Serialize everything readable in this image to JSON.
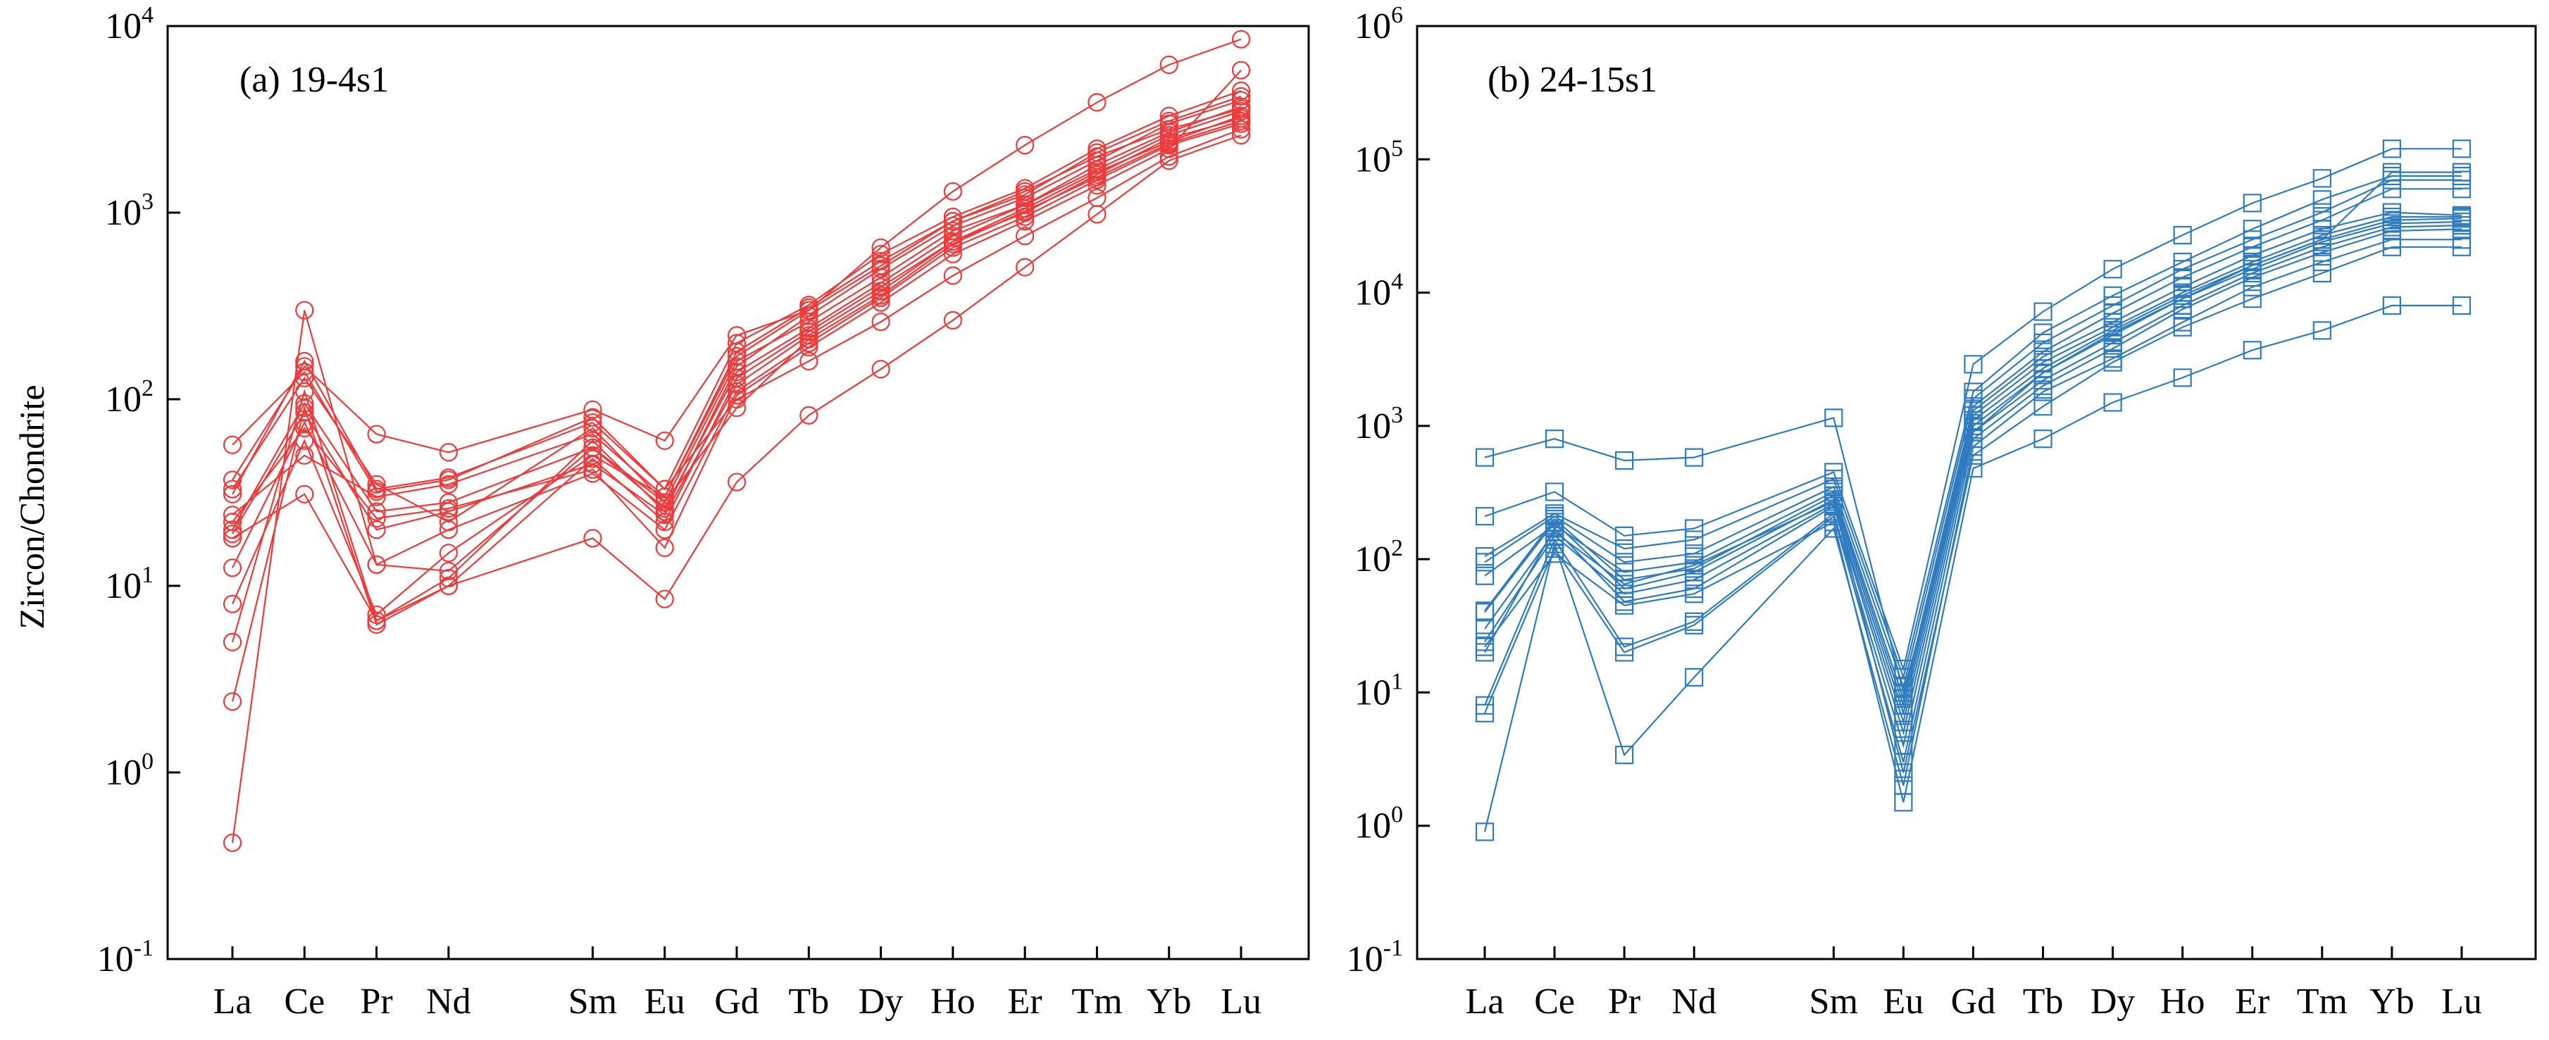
{
  "figure": {
    "y_axis_title": "Zircon/Chondrite"
  },
  "chart_data": [
    {
      "type": "line",
      "panel_label": "(a) 19-4s1",
      "categories": [
        "La",
        "Ce",
        "Pr",
        "Nd",
        "Sm",
        "Eu",
        "Gd",
        "Tb",
        "Dy",
        "Ho",
        "Er",
        "Tm",
        "Yb",
        "Lu"
      ],
      "category_gap_before": "Sm",
      "y_scale": "log",
      "ylim": [
        0.1,
        10000
      ],
      "y_ticks": [
        {
          "base": "10",
          "exp": "-1"
        },
        {
          "base": "10",
          "exp": "0"
        },
        {
          "base": "10",
          "exp": "1"
        },
        {
          "base": "10",
          "exp": "2"
        },
        {
          "base": "10",
          "exp": "3"
        },
        {
          "base": "10",
          "exp": "4"
        }
      ],
      "marker": "circle",
      "color": "#ee3a3a",
      "grid": false,
      "series": [
        {
          "values": [
            0.42,
            300,
            13,
            12,
            55,
            28,
            160,
            260,
            450,
            800,
            1100,
            1700,
            2600,
            3500
          ]
        },
        {
          "values": [
            2.4,
            90,
            6.2,
            10,
            48,
            22,
            130,
            230,
            400,
            700,
            1000,
            1600,
            2500,
            3200
          ]
        },
        {
          "values": [
            5,
            110,
            6.5,
            11,
            60,
            25,
            150,
            280,
            500,
            850,
            1200,
            1900,
            3000,
            4000
          ]
        },
        {
          "values": [
            8,
            60,
            7,
            15,
            50,
            30,
            170,
            300,
            520,
            900,
            1300,
            2000,
            2800,
            3600
          ]
        },
        {
          "values": [
            12.5,
            75,
            13,
            20,
            40,
            20,
            110,
            200,
            350,
            650,
            950,
            1500,
            2300,
            3000
          ]
        },
        {
          "values": [
            19,
            85,
            20,
            25,
            45,
            24,
            120,
            220,
            380,
            700,
            1050,
            1650,
            2400,
            3300
          ]
        },
        {
          "values": [
            20,
            95,
            25,
            28,
            55,
            26,
            140,
            240,
            420,
            750,
            1100,
            1800,
            2700,
            3700
          ]
        },
        {
          "values": [
            24,
            50,
            30,
            35,
            65,
            30,
            180,
            310,
            550,
            900,
            1250,
            2100,
            3100,
            4200
          ]
        },
        {
          "values": [
            31,
            160,
            33,
            38,
            75,
            33,
            200,
            320,
            600,
            950,
            1350,
            2200,
            3300,
            4500
          ]
        },
        {
          "values": [
            33,
            130,
            35,
            22,
            70,
            28,
            90,
            210,
            360,
            680,
            1020,
            1550,
            2350,
            3100
          ]
        },
        {
          "values": [
            37,
            150,
            65,
            52,
            88,
            60,
            220,
            300,
            650,
            1300,
            2300,
            3900,
            6200,
            8500
          ]
        },
        {
          "values": [
            57,
            140,
            32,
            37,
            80,
            33,
            100,
            160,
            260,
            460,
            750,
            1200,
            2000,
            2800
          ]
        },
        {
          "values": [
            18,
            31,
            6.5,
            10,
            18,
            8.5,
            36,
            82,
            145,
            265,
            510,
            980,
            1900,
            2600
          ]
        },
        {
          "values": [
            22,
            70,
            23,
            26,
            42,
            16,
            105,
            190,
            330,
            600,
            900,
            1400,
            2200,
            5800
          ]
        }
      ]
    },
    {
      "type": "line",
      "panel_label": "(b) 24-15s1",
      "categories": [
        "La",
        "Ce",
        "Pr",
        "Nd",
        "Sm",
        "Eu",
        "Gd",
        "Tb",
        "Dy",
        "Ho",
        "Er",
        "Tm",
        "Yb",
        "Lu"
      ],
      "category_gap_before": "Sm",
      "y_scale": "log",
      "ylim": [
        0.1,
        1000000
      ],
      "y_ticks": [
        {
          "base": "10",
          "exp": "-1"
        },
        {
          "base": "10",
          "exp": "0"
        },
        {
          "base": "10",
          "exp": "1"
        },
        {
          "base": "10",
          "exp": "2"
        },
        {
          "base": "10",
          "exp": "3"
        },
        {
          "base": "10",
          "exp": "4"
        },
        {
          "base": "10",
          "exp": "5"
        },
        {
          "base": "10",
          "exp": "6"
        }
      ],
      "marker": "square",
      "color": "#2f7bbf",
      "grid": false,
      "series": [
        {
          "values": [
            0.9,
            130,
            3.4,
            13,
            170,
            2,
            700,
            1800,
            3200,
            6000,
            11000,
            17000,
            25000,
            25000
          ]
        },
        {
          "values": [
            7,
            120,
            20,
            32,
            210,
            3,
            800,
            2000,
            3800,
            7500,
            13000,
            20000,
            29000,
            30000
          ]
        },
        {
          "values": [
            8,
            140,
            22,
            34,
            220,
            4,
            900,
            2200,
            4200,
            8000,
            14000,
            22000,
            31000,
            32000
          ]
        },
        {
          "values": [
            20,
            170,
            48,
            60,
            250,
            5,
            1000,
            2500,
            4800,
            9000,
            15000,
            24000,
            33000,
            34000
          ]
        },
        {
          "values": [
            24,
            150,
            55,
            70,
            260,
            6,
            1100,
            2700,
            5200,
            9500,
            16000,
            25000,
            35000,
            36000
          ]
        },
        {
          "values": [
            40,
            190,
            60,
            80,
            280,
            7,
            1200,
            3000,
            5500,
            10000,
            17000,
            27000,
            37000,
            37000
          ]
        },
        {
          "values": [
            41,
            200,
            70,
            85,
            300,
            8,
            1300,
            3300,
            6000,
            11000,
            19000,
            30000,
            40000,
            38000
          ]
        },
        {
          "values": [
            75,
            180,
            80,
            95,
            320,
            9,
            1400,
            3600,
            7000,
            13000,
            22000,
            35000,
            60000,
            60000
          ]
        },
        {
          "values": [
            95,
            210,
            95,
            110,
            350,
            11,
            1600,
            4200,
            8000,
            15000,
            25000,
            40000,
            70000,
            70000
          ]
        },
        {
          "values": [
            105,
            220,
            120,
            140,
            400,
            13,
            1800,
            5000,
            9500,
            17000,
            30000,
            50000,
            75000,
            75000
          ]
        },
        {
          "values": [
            210,
            320,
            150,
            170,
            450,
            15,
            2900,
            7200,
            15000,
            27000,
            47000,
            72000,
            120000,
            120000
          ]
        },
        {
          "values": [
            580,
            800,
            550,
            580,
            1150,
            10,
            900,
            2500,
            5000,
            9000,
            16000,
            25000,
            80000,
            80000
          ]
        },
        {
          "values": [
            22,
            110,
            45,
            55,
            190,
            1.5,
            480,
            800,
            1500,
            2300,
            3700,
            5200,
            8000,
            8000
          ]
        },
        {
          "values": [
            30,
            160,
            65,
            90,
            270,
            2.5,
            600,
            1400,
            3000,
            5500,
            9000,
            14000,
            22000,
            22000
          ]
        }
      ]
    }
  ]
}
